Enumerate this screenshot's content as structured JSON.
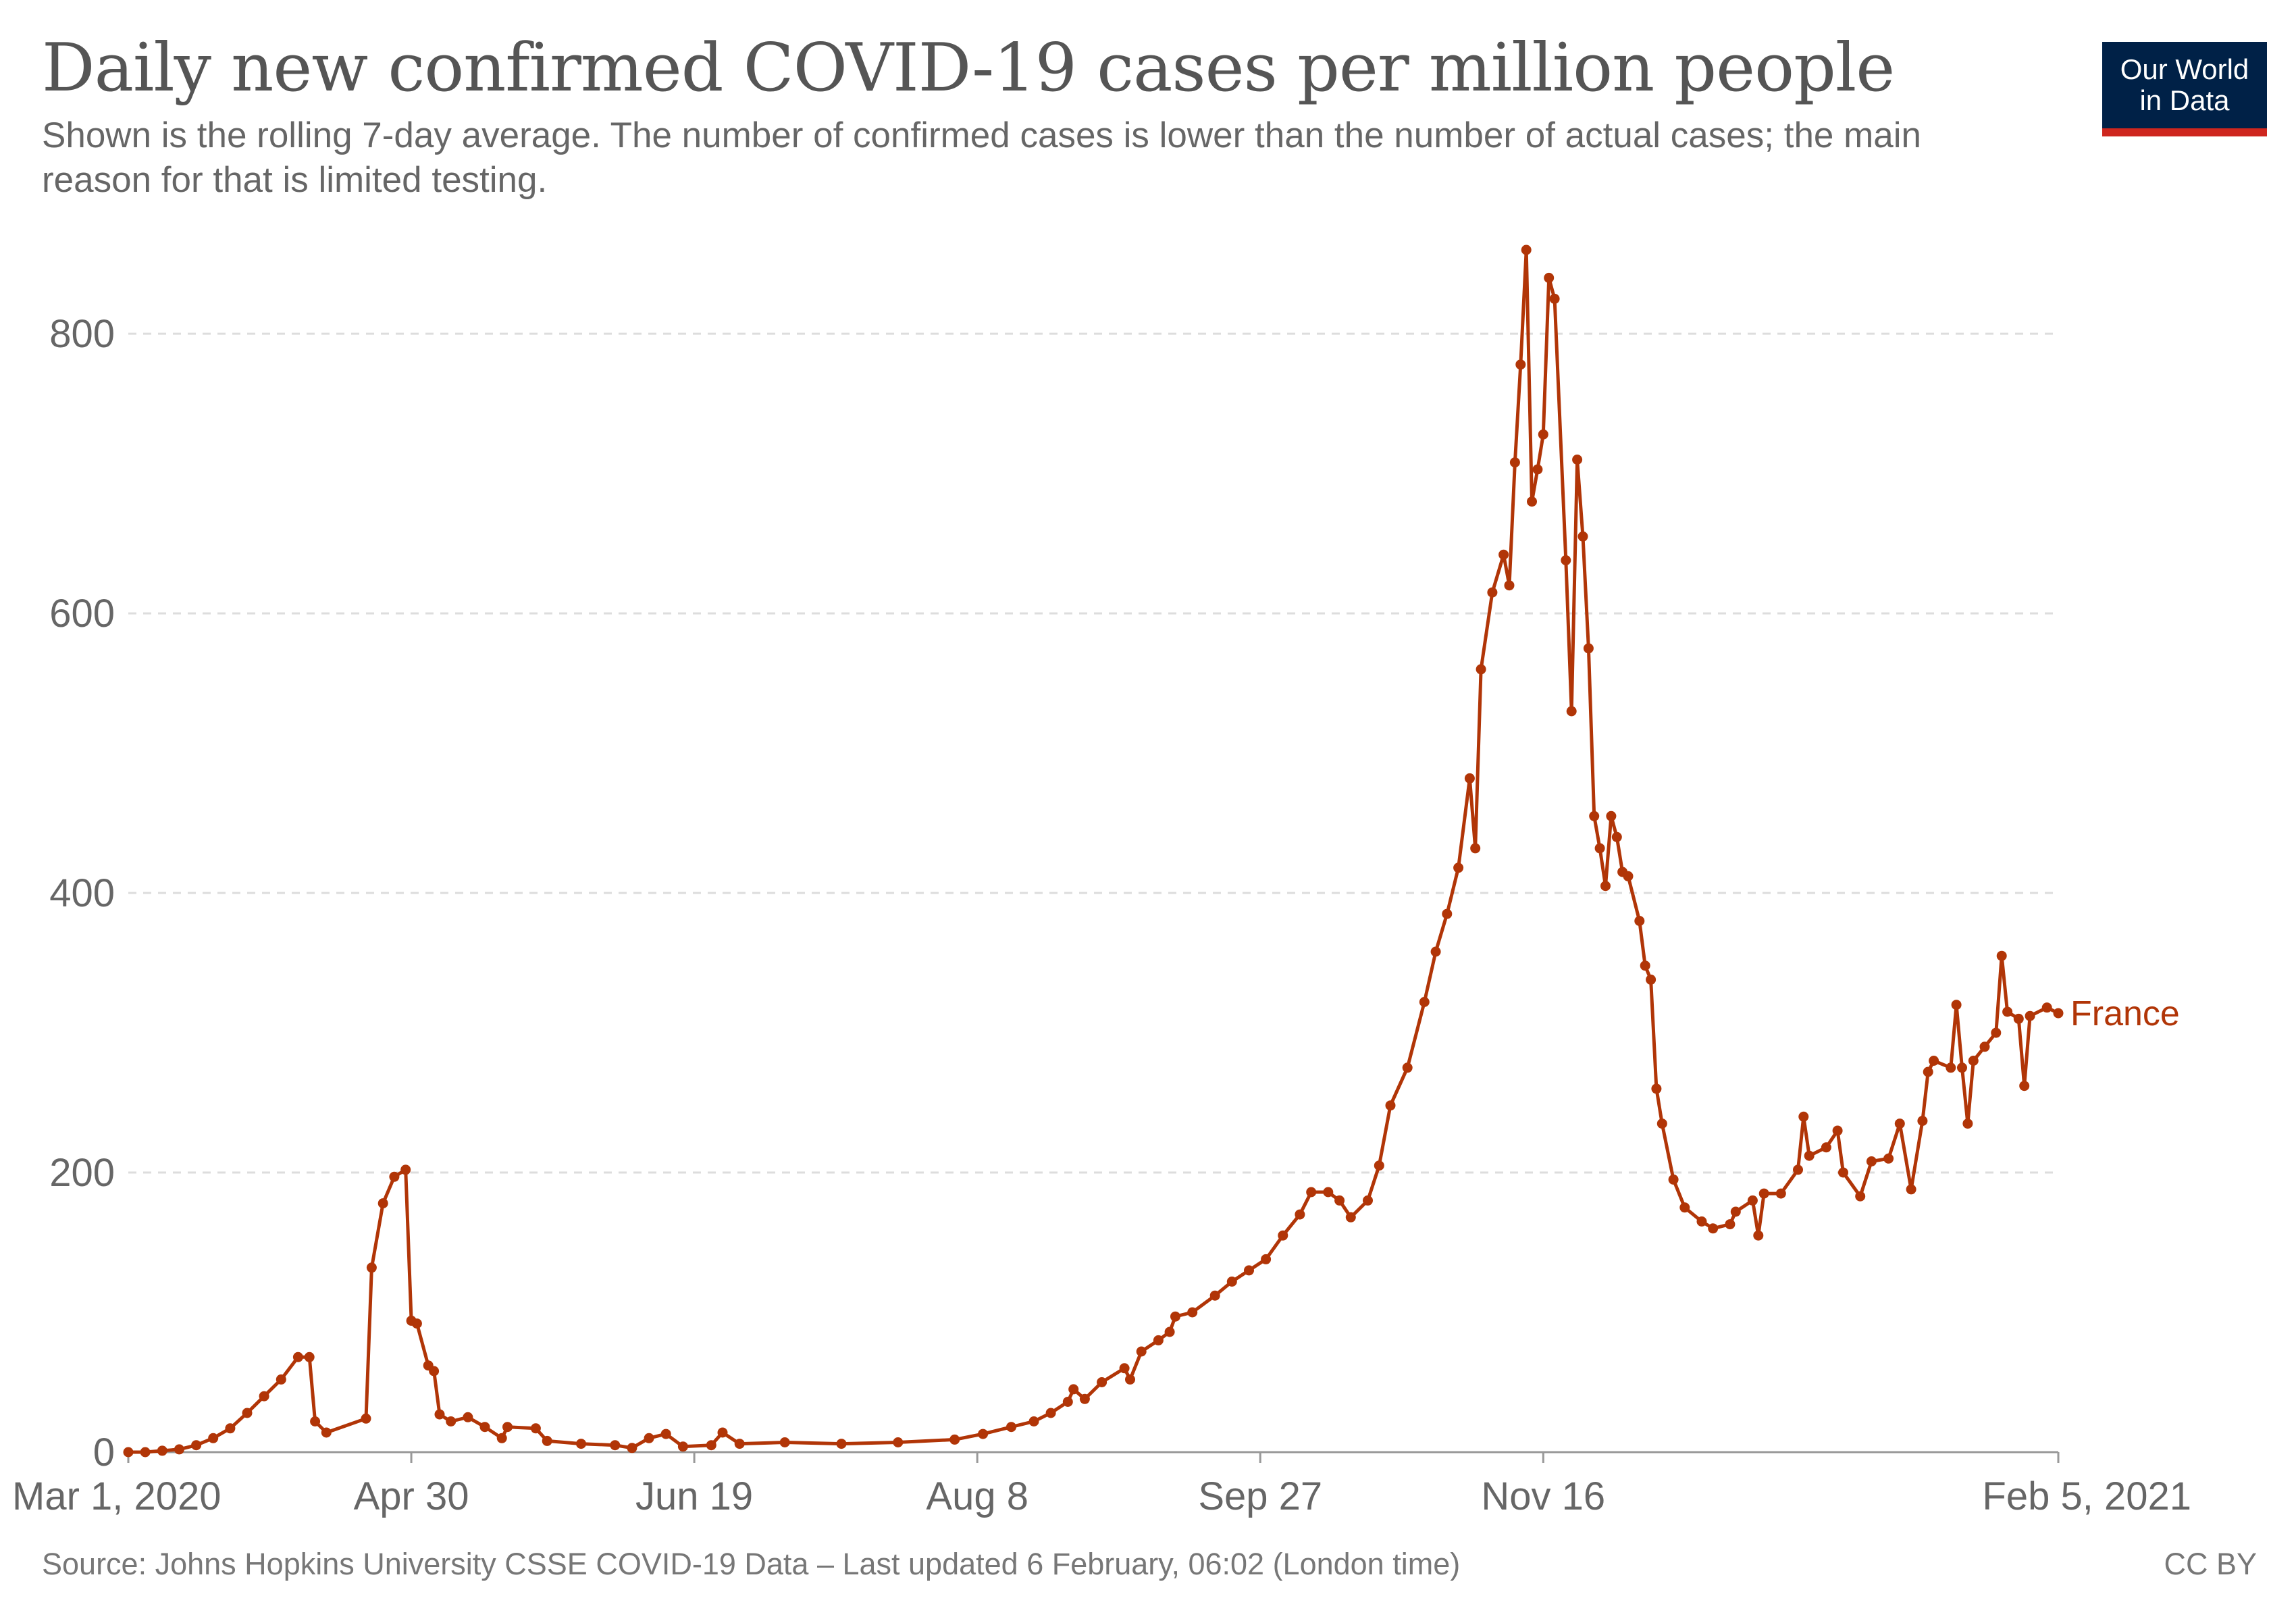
{
  "header": {
    "title": "Daily new confirmed COVID-19 cases per million people",
    "subtitle": "Shown is the rolling 7-day average. The number of confirmed cases is lower than the number of actual cases; the main reason for that is limited testing."
  },
  "logo": {
    "line1": "Our World",
    "line2": "in Data"
  },
  "footer": {
    "source": "Source: Johns Hopkins University CSSE COVID-19 Data – Last updated 6 February, 06:02 (London time)",
    "license": "CC BY"
  },
  "colors": {
    "series": "#b13507",
    "grid": "#dddddd",
    "axis_text": "#666666"
  },
  "chart_data": {
    "type": "line",
    "title": "Daily new confirmed COVID-19 cases per million people",
    "xlabel": "",
    "ylabel": "",
    "xlim": [
      "2020-03-01",
      "2021-02-05"
    ],
    "ylim": [
      0,
      860
    ],
    "grid": "horizontal dashed",
    "x_ticks": [
      "Mar 1, 2020",
      "Apr 30",
      "Jun 19",
      "Aug 8",
      "Sep 27",
      "Nov 16",
      "Feb 5, 2021"
    ],
    "y_ticks": [
      0,
      200,
      400,
      600,
      800
    ],
    "series": [
      {
        "name": "France",
        "color": "#b13507",
        "points": [
          [
            "2020-03-01",
            0
          ],
          [
            "2020-03-04",
            0
          ],
          [
            "2020-03-07",
            1
          ],
          [
            "2020-03-10",
            2
          ],
          [
            "2020-03-13",
            5
          ],
          [
            "2020-03-16",
            10
          ],
          [
            "2020-03-19",
            17
          ],
          [
            "2020-03-22",
            28
          ],
          [
            "2020-03-25",
            40
          ],
          [
            "2020-03-28",
            52
          ],
          [
            "2020-03-31",
            68
          ],
          [
            "2020-04-02",
            68
          ],
          [
            "2020-04-03",
            22
          ],
          [
            "2020-04-05",
            14
          ],
          [
            "2020-04-12",
            24
          ],
          [
            "2020-04-13",
            132
          ],
          [
            "2020-04-15",
            178
          ],
          [
            "2020-04-17",
            197
          ],
          [
            "2020-04-19",
            202
          ],
          [
            "2020-04-20",
            94
          ],
          [
            "2020-04-21",
            92
          ],
          [
            "2020-04-23",
            62
          ],
          [
            "2020-04-24",
            58
          ],
          [
            "2020-04-25",
            27
          ],
          [
            "2020-04-27",
            22
          ],
          [
            "2020-04-30",
            25
          ],
          [
            "2020-05-03",
            18
          ],
          [
            "2020-05-06",
            10
          ],
          [
            "2020-05-07",
            18
          ],
          [
            "2020-05-12",
            17
          ],
          [
            "2020-05-14",
            8
          ],
          [
            "2020-05-20",
            6
          ],
          [
            "2020-05-26",
            5
          ],
          [
            "2020-05-29",
            3
          ],
          [
            "2020-06-01",
            10
          ],
          [
            "2020-06-04",
            13
          ],
          [
            "2020-06-07",
            4
          ],
          [
            "2020-06-12",
            5
          ],
          [
            "2020-06-14",
            14
          ],
          [
            "2020-06-17",
            6
          ],
          [
            "2020-06-25",
            7
          ],
          [
            "2020-07-05",
            6
          ],
          [
            "2020-07-15",
            7
          ],
          [
            "2020-07-25",
            9
          ],
          [
            "2020-07-30",
            13
          ],
          [
            "2020-08-04",
            18
          ],
          [
            "2020-08-08",
            22
          ],
          [
            "2020-08-11",
            28
          ],
          [
            "2020-08-14",
            36
          ],
          [
            "2020-08-15",
            45
          ],
          [
            "2020-08-17",
            38
          ],
          [
            "2020-08-20",
            50
          ],
          [
            "2020-08-24",
            60
          ],
          [
            "2020-08-25",
            52
          ],
          [
            "2020-08-27",
            72
          ],
          [
            "2020-08-30",
            80
          ],
          [
            "2020-09-01",
            86
          ],
          [
            "2020-09-02",
            97
          ],
          [
            "2020-09-05",
            100
          ],
          [
            "2020-09-09",
            112
          ],
          [
            "2020-09-12",
            122
          ],
          [
            "2020-09-15",
            130
          ],
          [
            "2020-09-18",
            138
          ],
          [
            "2020-09-21",
            155
          ],
          [
            "2020-09-24",
            170
          ],
          [
            "2020-09-26",
            186
          ],
          [
            "2020-09-29",
            186
          ],
          [
            "2020-10-01",
            180
          ],
          [
            "2020-10-03",
            168
          ],
          [
            "2020-10-06",
            180
          ],
          [
            "2020-10-08",
            205
          ],
          [
            "2020-10-10",
            248
          ],
          [
            "2020-10-13",
            275
          ],
          [
            "2020-10-16",
            322
          ],
          [
            "2020-10-18",
            358
          ],
          [
            "2020-10-20",
            385
          ],
          [
            "2020-10-22",
            418
          ],
          [
            "2020-10-24",
            482
          ],
          [
            "2020-10-25",
            432
          ],
          [
            "2020-10-26",
            560
          ],
          [
            "2020-10-28",
            615
          ],
          [
            "2020-10-30",
            642
          ],
          [
            "2020-10-31",
            620
          ],
          [
            "2020-11-01",
            708
          ],
          [
            "2020-11-02",
            778
          ],
          [
            "2020-11-03",
            860
          ],
          [
            "2020-11-04",
            680
          ],
          [
            "2020-11-05",
            703
          ],
          [
            "2020-11-06",
            728
          ],
          [
            "2020-11-07",
            840
          ],
          [
            "2020-11-08",
            825
          ],
          [
            "2020-11-10",
            638
          ],
          [
            "2020-11-11",
            530
          ],
          [
            "2020-11-12",
            710
          ],
          [
            "2020-11-13",
            655
          ],
          [
            "2020-11-14",
            575
          ],
          [
            "2020-11-15",
            455
          ],
          [
            "2020-11-16",
            432
          ],
          [
            "2020-11-17",
            405
          ],
          [
            "2020-11-18",
            455
          ],
          [
            "2020-11-19",
            440
          ],
          [
            "2020-11-20",
            415
          ],
          [
            "2020-11-21",
            412
          ],
          [
            "2020-11-23",
            380
          ],
          [
            "2020-11-24",
            348
          ],
          [
            "2020-11-25",
            338
          ],
          [
            "2020-11-26",
            260
          ],
          [
            "2020-11-27",
            235
          ],
          [
            "2020-11-29",
            195
          ],
          [
            "2020-12-01",
            175
          ],
          [
            "2020-12-04",
            165
          ],
          [
            "2020-12-06",
            160
          ],
          [
            "2020-12-09",
            163
          ],
          [
            "2020-12-10",
            172
          ],
          [
            "2020-12-13",
            180
          ],
          [
            "2020-12-14",
            155
          ],
          [
            "2020-12-15",
            185
          ],
          [
            "2020-12-18",
            185
          ],
          [
            "2020-12-21",
            202
          ],
          [
            "2020-12-22",
            240
          ],
          [
            "2020-12-23",
            212
          ],
          [
            "2020-12-26",
            218
          ],
          [
            "2020-12-28",
            230
          ],
          [
            "2020-12-29",
            200
          ],
          [
            "2021-01-01",
            183
          ],
          [
            "2021-01-03",
            208
          ],
          [
            "2021-01-06",
            210
          ],
          [
            "2021-01-08",
            235
          ],
          [
            "2021-01-10",
            188
          ],
          [
            "2021-01-12",
            237
          ],
          [
            "2021-01-13",
            272
          ],
          [
            "2021-01-14",
            280
          ],
          [
            "2021-01-17",
            275
          ],
          [
            "2021-01-18",
            320
          ],
          [
            "2021-01-19",
            275
          ],
          [
            "2021-01-20",
            235
          ],
          [
            "2021-01-21",
            280
          ],
          [
            "2021-01-23",
            290
          ],
          [
            "2021-01-25",
            300
          ],
          [
            "2021-01-26",
            355
          ],
          [
            "2021-01-27",
            315
          ],
          [
            "2021-01-29",
            310
          ],
          [
            "2021-01-30",
            262
          ],
          [
            "2021-01-31",
            312
          ],
          [
            "2021-02-03",
            318
          ],
          [
            "2021-02-05",
            314
          ]
        ]
      }
    ]
  }
}
